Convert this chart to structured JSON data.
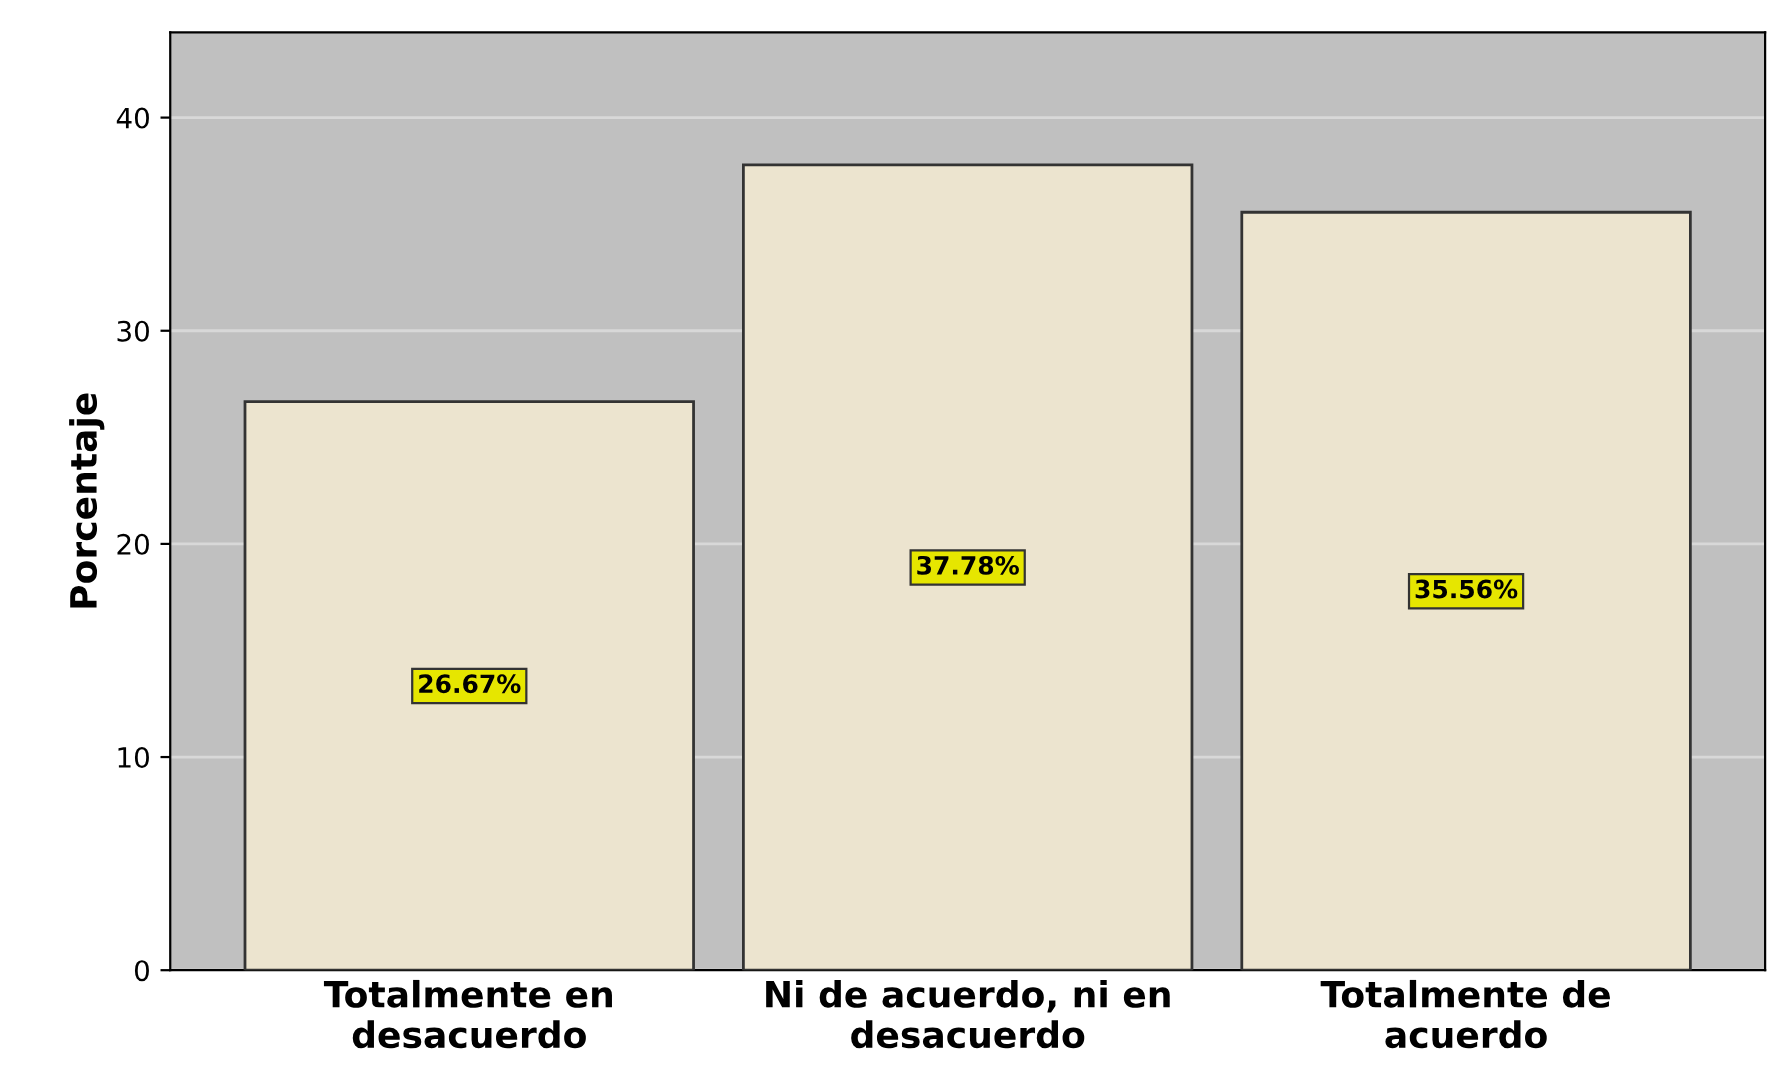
{
  "chart_data": {
    "type": "bar",
    "ylabel": "Porcentaje",
    "categories": [
      "Totalmente en\ndesacuerdo",
      "Ni de acuerdo, ni en\ndesacuerdo",
      "Totalmente de\nacuerdo"
    ],
    "values": [
      26.67,
      37.78,
      35.56
    ],
    "value_labels": [
      "26.67%",
      "37.78%",
      "35.56%"
    ],
    "color": "#ece4cf",
    "ylim": [
      0,
      44
    ],
    "yticks": [
      0,
      10,
      20,
      30,
      40
    ],
    "grid": "y"
  }
}
